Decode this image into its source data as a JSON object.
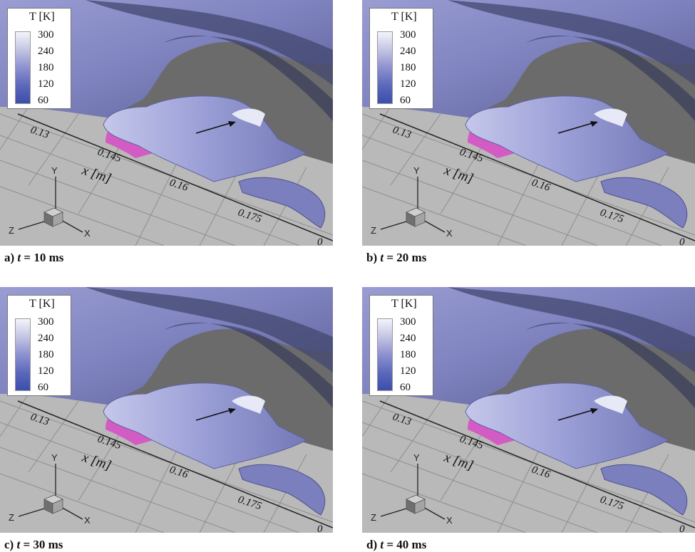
{
  "legend": {
    "title": "T [K]",
    "ticks": [
      "300",
      "240",
      "180",
      "120",
      "60"
    ]
  },
  "axis": {
    "label": "x [m]",
    "ticks": [
      "0.13",
      "0.145",
      "0.16",
      "0.175",
      "0"
    ]
  },
  "triad": {
    "y": "Y",
    "z": "Z",
    "x": "X"
  },
  "colors": {
    "surface": "#8689c2",
    "surface_dark": "#3c3f6a",
    "floor": "#b8b8b8",
    "background": "#6a6a6a",
    "cylinder": "#d657c4"
  },
  "panels": [
    {
      "id": "a",
      "label": "a)",
      "var": "t",
      "value": "= 10 ms"
    },
    {
      "id": "b",
      "label": "b)",
      "var": "t",
      "value": "= 20 ms"
    },
    {
      "id": "c",
      "label": "c)",
      "var": "t",
      "value": "= 30 ms"
    },
    {
      "id": "d",
      "label": "d)",
      "var": "t",
      "value": "= 40 ms"
    }
  ]
}
